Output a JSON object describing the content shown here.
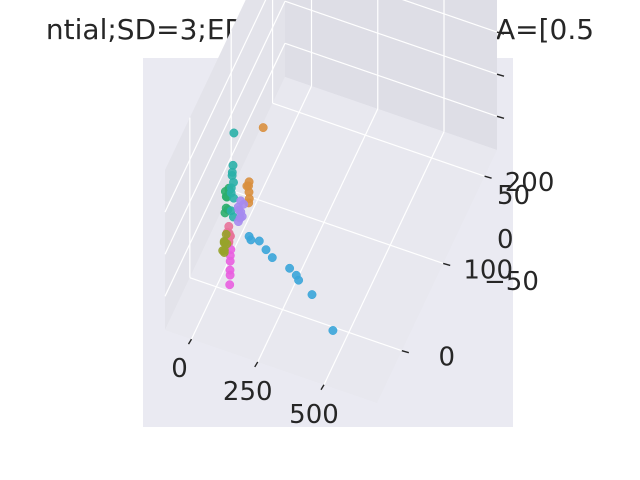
{
  "chart_data": {
    "type": "scatter",
    "projection": "3d",
    "title": "ntial;SD=3;ED=128;GM=beta;GA=[0.5",
    "xlabel": "",
    "ylabel": "",
    "zlabel": "",
    "x_ticks": [
      "0",
      "250",
      "500"
    ],
    "y_ticks": [
      "0",
      "100",
      "200"
    ],
    "z_ticks": [
      "50",
      "0",
      "−50"
    ],
    "grid": true,
    "legend": "none",
    "colors": {
      "panel_background": "#eaeaf2",
      "pane_left": "#e3e3ea",
      "pane_right": "#dedee6",
      "pane_floor": "#e8e8ef",
      "grid": "#ffffff"
    },
    "series": [
      {
        "color": "#e8739a",
        "points": [
          [
            45,
            0,
            -25
          ],
          [
            42,
            -2,
            -30
          ],
          [
            48,
            3,
            -28
          ],
          [
            40,
            1,
            -22
          ],
          [
            50,
            -1,
            -20
          ],
          [
            44,
            2,
            -35
          ],
          [
            47,
            -3,
            -26
          ],
          [
            41,
            4,
            -18
          ],
          [
            53,
            0,
            -24
          ],
          [
            46,
            1,
            -32
          ]
        ]
      },
      {
        "color": "#d98f3e",
        "points": [
          [
            115,
            4,
            38
          ],
          [
            116,
            5,
            42
          ],
          [
            117,
            4,
            31
          ],
          [
            115,
            6,
            21
          ],
          [
            116,
            4,
            18
          ],
          [
            106,
            6,
            35
          ],
          [
            130,
            30,
            82
          ],
          [
            210,
            150,
            145
          ]
        ]
      },
      {
        "color": "#2cae6d",
        "points": [
          [
            30,
            5,
            15
          ],
          [
            34,
            2,
            5
          ],
          [
            26,
            9,
            10
          ],
          [
            38,
            6,
            25
          ],
          [
            31,
            1,
            0
          ],
          [
            36,
            8,
            20
          ],
          [
            28,
            4,
            22
          ],
          [
            33,
            7,
            -2
          ]
        ]
      },
      {
        "color": "#2ab0a8",
        "points": [
          [
            55,
            3,
            45
          ],
          [
            57,
            5,
            35
          ],
          [
            53,
            2,
            25
          ],
          [
            56,
            6,
            15
          ],
          [
            54,
            1,
            5
          ],
          [
            58,
            4,
            -5
          ],
          [
            55,
            5,
            55
          ],
          [
            52,
            3,
            30
          ],
          [
            57,
            2,
            50
          ],
          [
            60,
            4,
            95
          ]
        ]
      },
      {
        "color": "#3aa5d9",
        "points": [
          [
            130,
            -4,
            -12
          ],
          [
            140,
            -6,
            -13
          ],
          [
            170,
            -5,
            -12
          ],
          [
            200,
            -8,
            -16
          ],
          [
            230,
            -12,
            -18
          ],
          [
            300,
            -15,
            -20
          ],
          [
            330,
            -18,
            -22
          ],
          [
            345,
            -22,
            -22
          ],
          [
            400,
            -25,
            -30
          ],
          [
            510,
            -45,
            -40
          ]
        ]
      },
      {
        "color": "#a58af0",
        "points": [
          [
            82,
            2,
            8
          ],
          [
            86,
            4,
            4
          ],
          [
            90,
            5,
            -2
          ],
          [
            78,
            3,
            10
          ],
          [
            94,
            6,
            12
          ],
          [
            88,
            1,
            0
          ],
          [
            84,
            5,
            16
          ],
          [
            80,
            2,
            -6
          ]
        ]
      },
      {
        "color": "#e95ee0",
        "points": [
          [
            62,
            -6,
            -40
          ],
          [
            64,
            -8,
            -55
          ],
          [
            66,
            -10,
            -70
          ],
          [
            60,
            -5,
            -48
          ],
          [
            63,
            -7,
            -62
          ],
          [
            61,
            -4,
            -35
          ]
        ]
      },
      {
        "color": "#97a32a",
        "points": [
          [
            36,
            -4,
            -28
          ],
          [
            40,
            -6,
            -36
          ],
          [
            33,
            -2,
            -32
          ],
          [
            44,
            -8,
            -24
          ],
          [
            38,
            -5,
            -40
          ],
          [
            42,
            -3,
            -20
          ],
          [
            35,
            -7,
            -36
          ],
          [
            46,
            -4,
            -30
          ]
        ]
      }
    ]
  }
}
